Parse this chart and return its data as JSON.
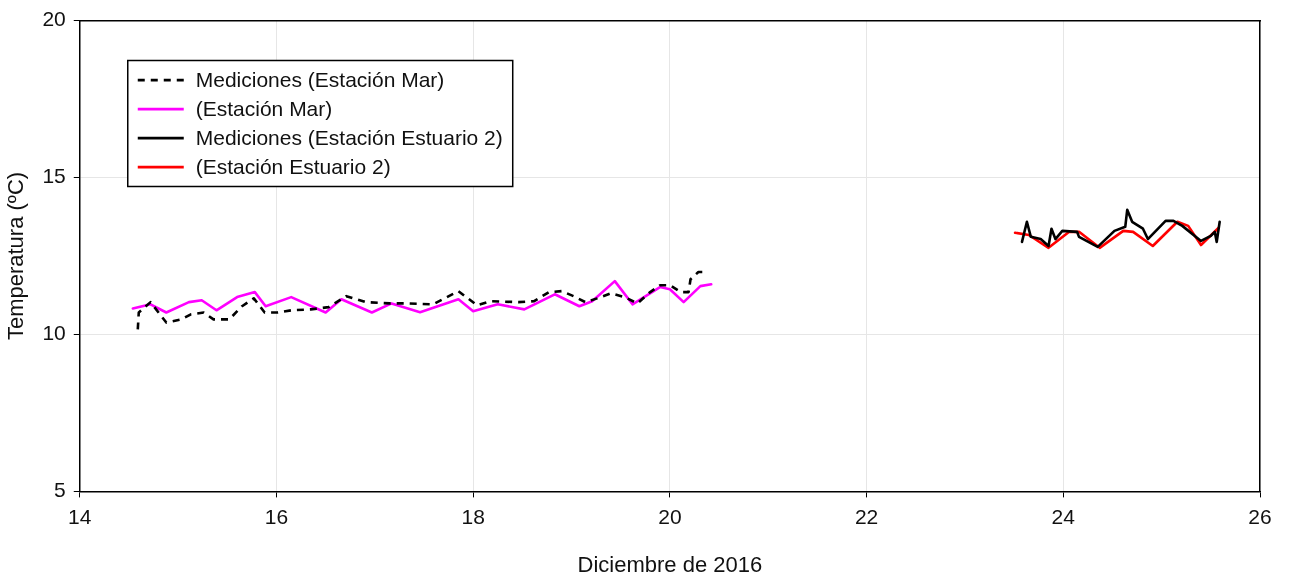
{
  "chart_data": {
    "type": "line",
    "xlabel": "Diciembre de 2016",
    "ylabel": "Temperatura (ºC)",
    "xlim": [
      14,
      26
    ],
    "xticks": [
      14,
      16,
      18,
      20,
      22,
      24,
      26
    ],
    "ylim": [
      5,
      20
    ],
    "yticks": [
      5,
      10,
      15,
      20
    ],
    "grid": true,
    "legend": "top left",
    "marker": "none",
    "series": [
      {
        "name": "Mediciones (Estación Mar)",
        "color": "#000000",
        "line_style": "dashed",
        "x": [
          14.59,
          14.6,
          14.72,
          14.88,
          15.03,
          15.13,
          15.26,
          15.36,
          15.52,
          15.65,
          15.77,
          15.88,
          16.01,
          16.15,
          16.35,
          16.53,
          16.71,
          16.91,
          17.15,
          17.32,
          17.59,
          17.71,
          17.85,
          18.04,
          18.18,
          18.46,
          18.62,
          18.77,
          18.9,
          19.02,
          19.14,
          19.26,
          19.4,
          19.54,
          19.67,
          19.8,
          19.9,
          20.0,
          20.11,
          20.19,
          20.21,
          20.29,
          20.33
        ],
        "values": [
          10.16,
          10.7,
          11.03,
          10.38,
          10.48,
          10.64,
          10.7,
          10.48,
          10.48,
          10.9,
          11.15,
          10.7,
          10.7,
          10.77,
          10.8,
          10.87,
          11.22,
          11.03,
          10.99,
          10.99,
          10.96,
          11.15,
          11.38,
          10.93,
          11.06,
          11.03,
          11.06,
          11.35,
          11.38,
          11.22,
          11.03,
          11.15,
          11.31,
          11.19,
          10.99,
          11.35,
          11.57,
          11.57,
          11.35,
          11.35,
          11.76,
          11.99,
          11.99
        ]
      },
      {
        "name": "(Estación Mar)",
        "color": "#ff00ff",
        "line_style": "solid",
        "x": [
          14.54,
          14.72,
          14.88,
          15.11,
          15.24,
          15.39,
          15.6,
          15.78,
          15.89,
          16.15,
          16.5,
          16.66,
          16.97,
          17.17,
          17.46,
          17.85,
          18.0,
          18.25,
          18.52,
          18.83,
          19.08,
          19.21,
          19.44,
          19.62,
          19.9,
          20.0,
          20.14,
          20.31,
          20.42
        ],
        "values": [
          10.83,
          10.96,
          10.7,
          11.03,
          11.09,
          10.77,
          11.19,
          11.35,
          10.9,
          11.19,
          10.7,
          11.12,
          10.7,
          10.99,
          10.71,
          11.12,
          10.74,
          10.96,
          10.8,
          11.28,
          10.9,
          11.06,
          11.7,
          10.96,
          11.51,
          11.44,
          11.03,
          11.54,
          11.6
        ]
      },
      {
        "name": "Mediciones (Estación Estuario 2)",
        "color": "#000000",
        "line_style": "solid",
        "x": [
          23.58,
          23.63,
          23.67,
          23.77,
          23.85,
          23.88,
          23.92,
          23.99,
          24.14,
          24.16,
          24.35,
          24.52,
          24.63,
          24.65,
          24.7,
          24.81,
          24.86,
          25.04,
          25.12,
          25.21,
          25.4,
          25.5,
          25.54,
          25.56,
          25.59
        ],
        "values": [
          12.95,
          13.59,
          13.11,
          13.04,
          12.82,
          13.37,
          13.04,
          13.3,
          13.27,
          13.11,
          12.79,
          13.3,
          13.43,
          13.97,
          13.59,
          13.37,
          13.04,
          13.62,
          13.62,
          13.46,
          12.98,
          13.14,
          13.27,
          12.95,
          13.59
        ]
      },
      {
        "name": "(Estación Estuario 2)",
        "color": "#ff0000",
        "line_style": "solid",
        "x": [
          23.51,
          23.65,
          23.85,
          24.06,
          24.16,
          24.37,
          24.61,
          24.71,
          24.91,
          25.16,
          25.27,
          25.4,
          25.58
        ],
        "values": [
          13.24,
          13.17,
          12.76,
          13.27,
          13.27,
          12.76,
          13.3,
          13.27,
          12.82,
          13.59,
          13.46,
          12.85,
          13.4
        ]
      }
    ]
  }
}
